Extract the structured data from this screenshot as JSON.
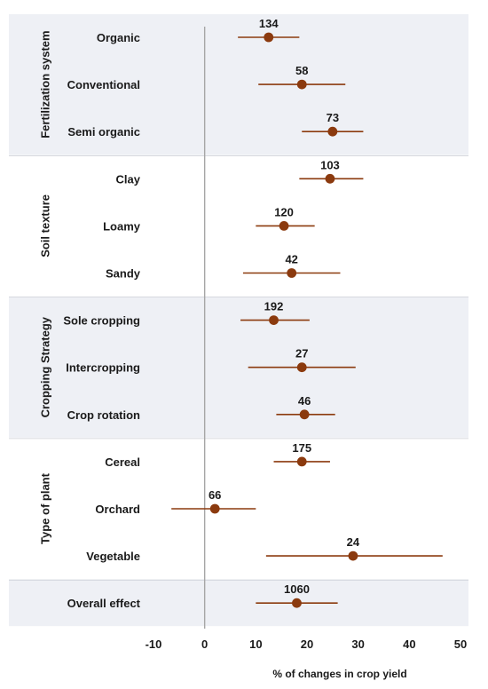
{
  "chart_data": {
    "type": "forest",
    "xlabel": "% of changes in crop yield",
    "xlim": [
      -10,
      50
    ],
    "xticks": [
      "-10",
      "0",
      "10",
      "20",
      "30",
      "40",
      "50"
    ],
    "marker_color": "#8B3A0E",
    "band_color": "#EEF0F5",
    "groups": [
      {
        "name": "Fertilization system",
        "shaded": true,
        "rows": [
          {
            "label": "Organic",
            "n": "134",
            "mean": 12.5,
            "ci": [
              6.5,
              18.5
            ]
          },
          {
            "label": "Conventional",
            "n": "58",
            "mean": 19.0,
            "ci": [
              10.5,
              27.5
            ]
          },
          {
            "label": "Semi organic",
            "n": "73",
            "mean": 25.0,
            "ci": [
              19.0,
              31.0
            ]
          }
        ]
      },
      {
        "name": "Soil texture",
        "shaded": false,
        "rows": [
          {
            "label": "Clay",
            "n": "103",
            "mean": 24.5,
            "ci": [
              18.5,
              31.0
            ]
          },
          {
            "label": "Loamy",
            "n": "120",
            "mean": 15.5,
            "ci": [
              10.0,
              21.5
            ]
          },
          {
            "label": "Sandy",
            "n": "42",
            "mean": 17.0,
            "ci": [
              7.5,
              26.5
            ]
          }
        ]
      },
      {
        "name": "Cropping Strategy",
        "shaded": true,
        "rows": [
          {
            "label": "Sole cropping",
            "n": "192",
            "mean": 13.5,
            "ci": [
              7.0,
              20.5
            ]
          },
          {
            "label": "Intercropping",
            "n": "27",
            "mean": 19.0,
            "ci": [
              8.5,
              29.5
            ]
          },
          {
            "label": "Crop rotation",
            "n": "46",
            "mean": 19.5,
            "ci": [
              14.0,
              25.5
            ]
          }
        ]
      },
      {
        "name": "Type of plant",
        "shaded": false,
        "rows": [
          {
            "label": "Cereal",
            "n": "175",
            "mean": 19.0,
            "ci": [
              13.5,
              24.5
            ]
          },
          {
            "label": "Orchard",
            "n": "66",
            "mean": 2.0,
            "ci": [
              -6.5,
              10.0
            ]
          },
          {
            "label": "Vegetable",
            "n": "24",
            "mean": 29.0,
            "ci": [
              12.0,
              46.5
            ]
          }
        ]
      },
      {
        "name": "",
        "shaded": true,
        "rows": [
          {
            "label": "Overall effect",
            "n": "1060",
            "mean": 18.0,
            "ci": [
              10.0,
              26.0
            ]
          }
        ]
      }
    ]
  }
}
